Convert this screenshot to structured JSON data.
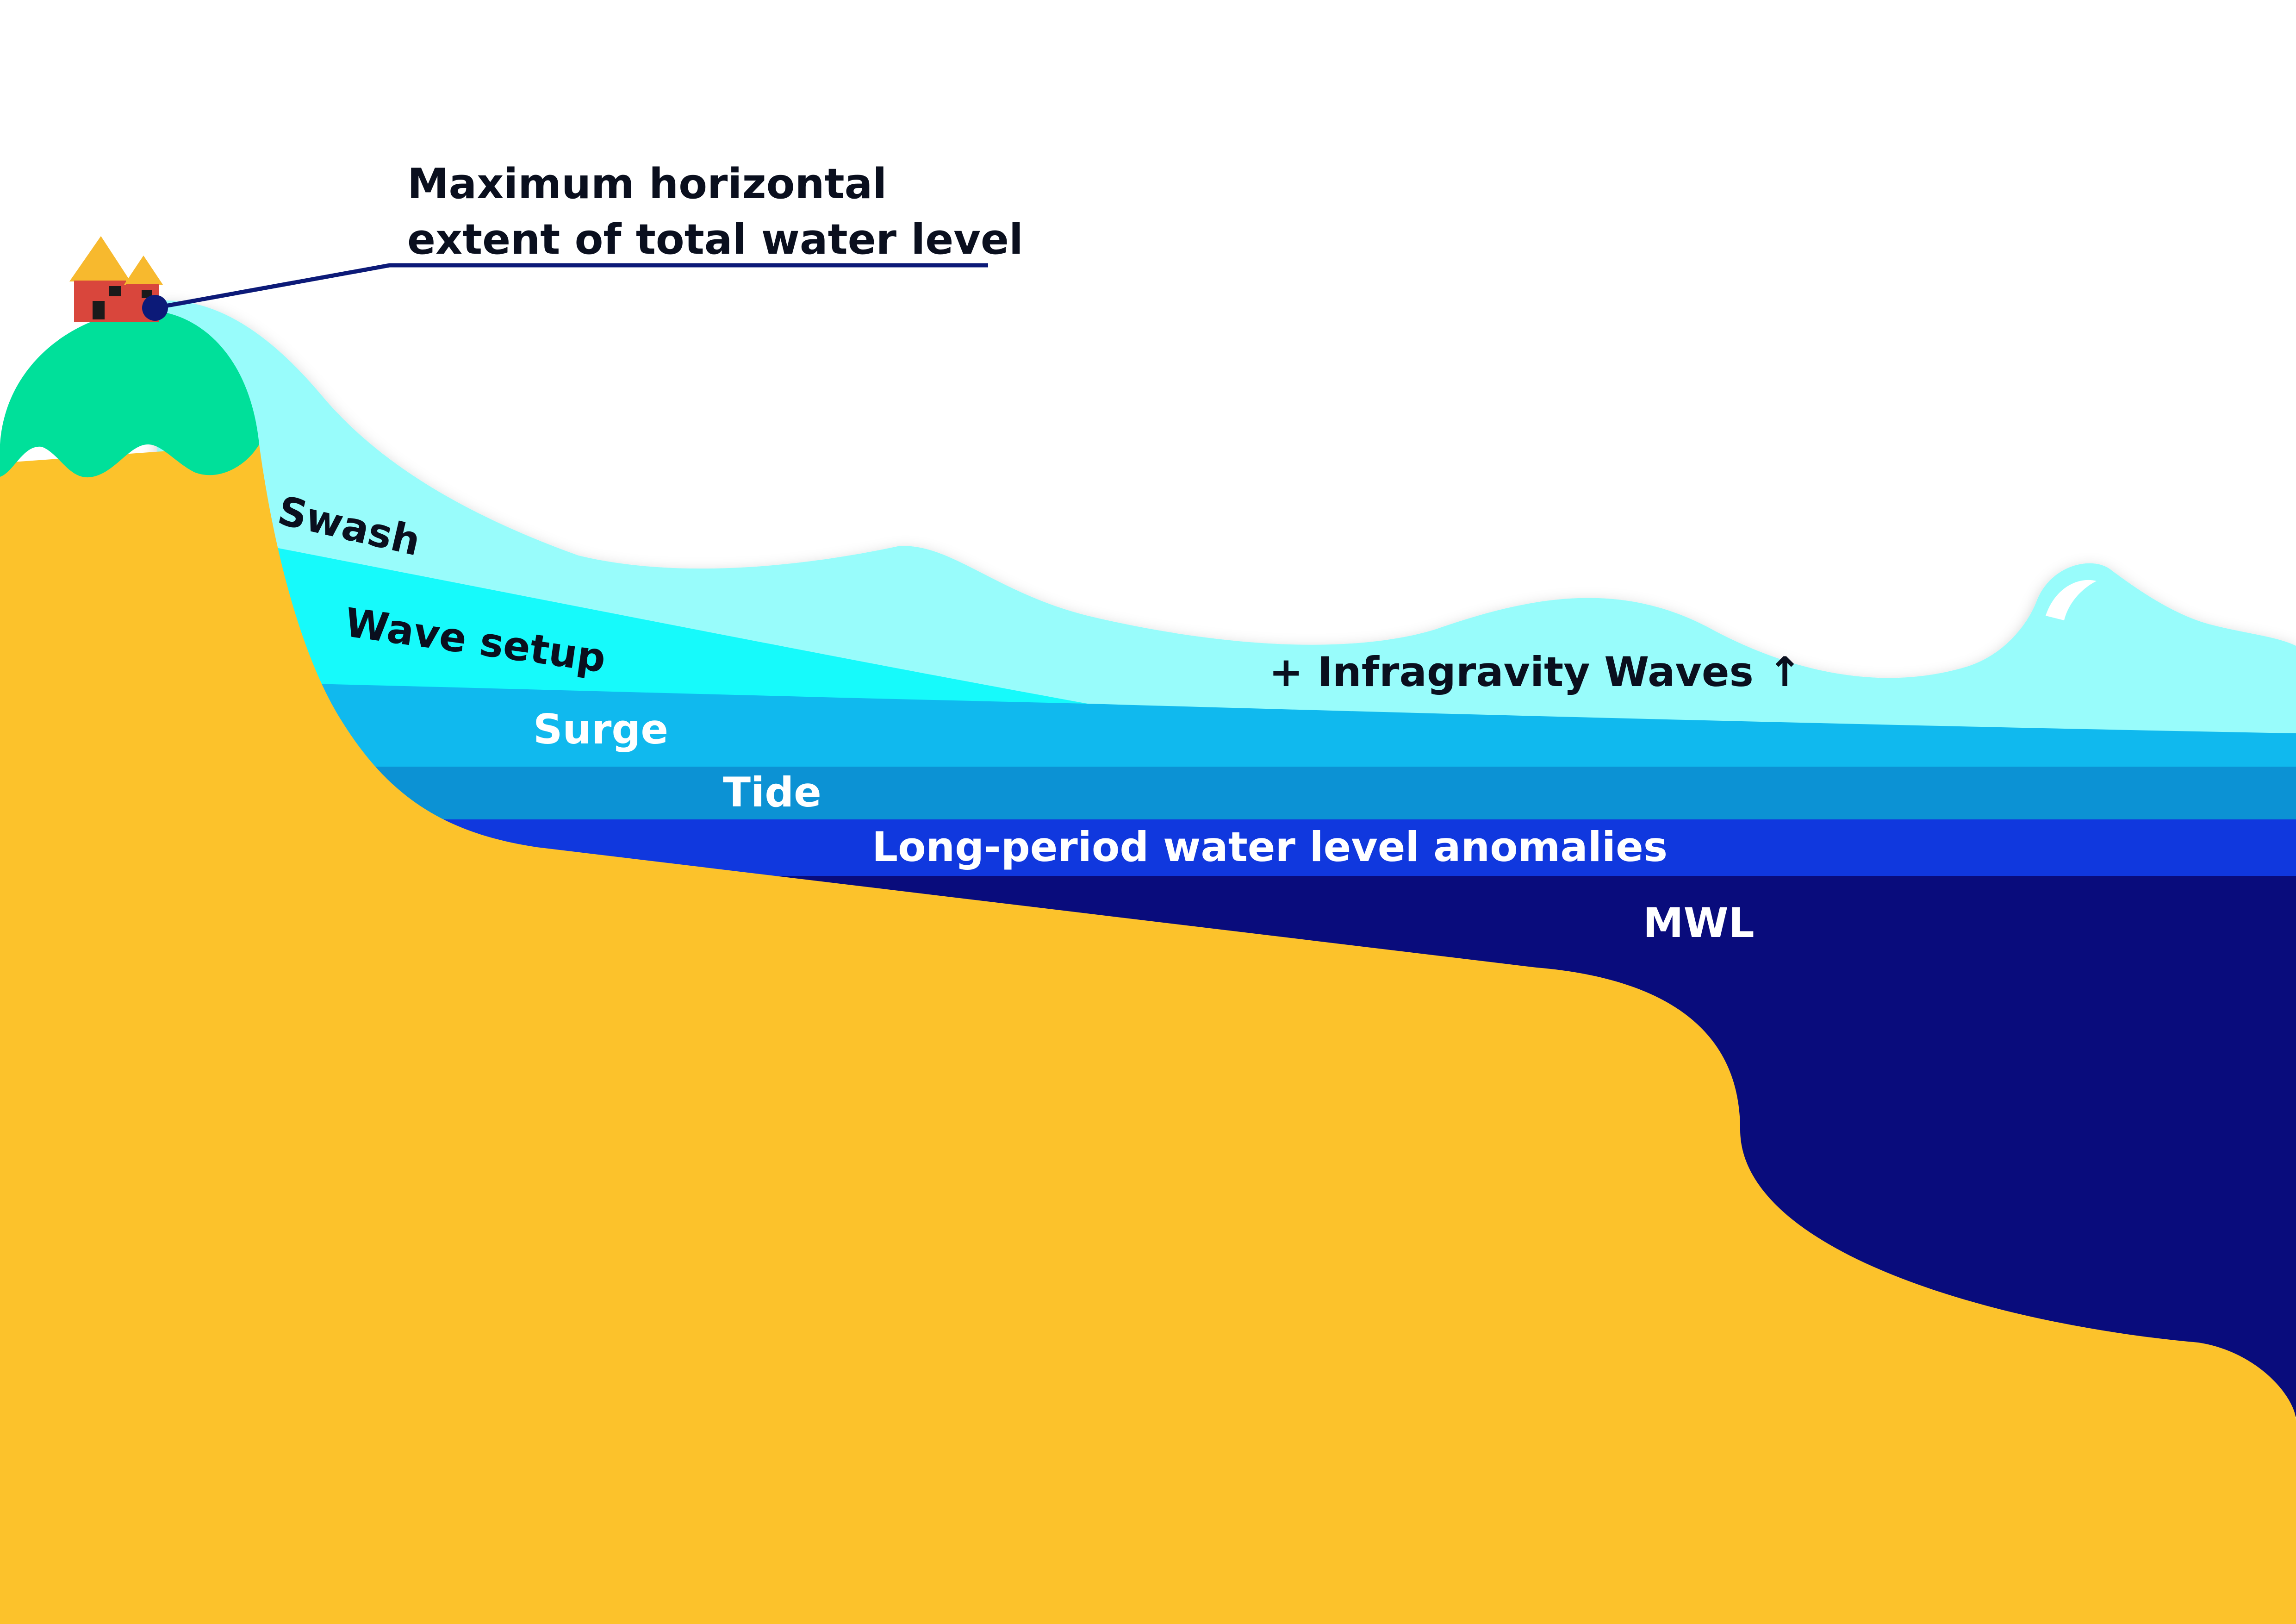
{
  "title": {
    "line1": "Maximum horizontal",
    "line2": "extent of total water level"
  },
  "layers": {
    "swash": "Swash",
    "wave_setup": "Wave setup",
    "surge": "Surge",
    "tide": "Tide",
    "anomalies": "Long-period water level anomalies",
    "mwl": "MWL",
    "infragravity": "+ Infragravity Waves ↑"
  },
  "colors": {
    "sand": "#fcc22b",
    "hill": "#00e09a",
    "swash": "#98fcfb",
    "wave_setup": "#16fafb",
    "surge": "#10b9ee",
    "tide": "#0c92d4",
    "anomalies": "#1038de",
    "mwl": "#090c7c",
    "house_wall": "#d9463c",
    "house_roof": "#f7b92e",
    "marker": "#0c1a78"
  }
}
